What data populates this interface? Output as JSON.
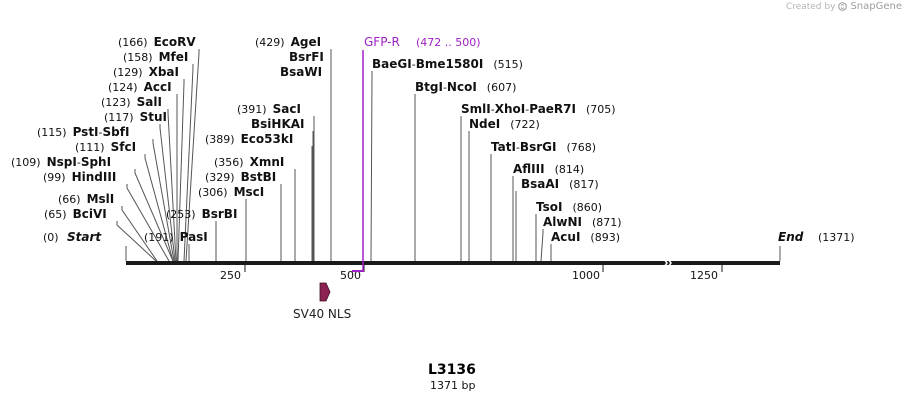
{
  "credit": {
    "prefix": "Created by",
    "brand": "SnapGene"
  },
  "map": {
    "name": "L3136",
    "length_label": "1371 bp",
    "length": 1371,
    "ticks": [
      "250",
      "500",
      "1000",
      "1250"
    ],
    "start": {
      "label": "Start",
      "pos": "(0)"
    },
    "end": {
      "label": "End",
      "pos": "(1371)"
    }
  },
  "sites": [
    {
      "names": [
        "EcoRV"
      ],
      "pos": "(166)"
    },
    {
      "names": [
        "MfeI"
      ],
      "pos": "(158)"
    },
    {
      "names": [
        "XbaI"
      ],
      "pos": "(129)"
    },
    {
      "names": [
        "AccI"
      ],
      "pos": "(124)"
    },
    {
      "names": [
        "SalI"
      ],
      "pos": "(123)"
    },
    {
      "names": [
        "StuI"
      ],
      "pos": "(117)"
    },
    {
      "names": [
        "PstI",
        "SbfI"
      ],
      "pos": "(115)"
    },
    {
      "names": [
        "SfcI"
      ],
      "pos": "(111)"
    },
    {
      "names": [
        "NspI",
        "SphI"
      ],
      "pos": "(109)"
    },
    {
      "names": [
        "HindIII"
      ],
      "pos": "(99)"
    },
    {
      "names": [
        "MslI"
      ],
      "pos": "(66)"
    },
    {
      "names": [
        "BciVI"
      ],
      "pos": "(65)"
    },
    {
      "names": [
        "PasI"
      ],
      "pos": "(191)"
    },
    {
      "names": [
        "BsrBI"
      ],
      "pos": "(253)"
    },
    {
      "names": [
        "MscI"
      ],
      "pos": "(306)"
    },
    {
      "names": [
        "BstBI"
      ],
      "pos": "(329)"
    },
    {
      "names": [
        "XmnI"
      ],
      "pos": "(356)"
    },
    {
      "names": [
        "Eco53kI"
      ],
      "pos": "(389)"
    },
    {
      "names": [
        "BsiHKAI"
      ],
      "pos": ""
    },
    {
      "names": [
        "SacI"
      ],
      "pos": "(391)"
    },
    {
      "names": [
        "BsaWI"
      ],
      "pos": ""
    },
    {
      "names": [
        "BsrFI"
      ],
      "pos": ""
    },
    {
      "names": [
        "AgeI"
      ],
      "pos": "(429)"
    },
    {
      "names": [
        "BaeGI",
        "Bme1580I"
      ],
      "pos": "(515)"
    },
    {
      "names": [
        "BtgI",
        "NcoI"
      ],
      "pos": "(607)"
    },
    {
      "names": [
        "SmlI",
        "XhoI",
        "PaeR7I"
      ],
      "pos": "(705)"
    },
    {
      "names": [
        "NdeI"
      ],
      "pos": "(722)"
    },
    {
      "names": [
        "TatI",
        "BsrGI"
      ],
      "pos": "(768)"
    },
    {
      "names": [
        "AflIII"
      ],
      "pos": "(814)"
    },
    {
      "names": [
        "BsaAI"
      ],
      "pos": "(817)"
    },
    {
      "names": [
        "TsoI"
      ],
      "pos": "(860)"
    },
    {
      "names": [
        "AlwNI"
      ],
      "pos": "(871)"
    },
    {
      "names": [
        "AcuI"
      ],
      "pos": "(893)"
    }
  ],
  "primer": {
    "name": "GFP-R",
    "range": "(472 .. 500)",
    "color": "#a020c8"
  },
  "feature": {
    "name": "SV40 NLS",
    "color": "#8b2252"
  },
  "colors": {
    "backbone": "#1a1a1a",
    "cut_line": "#555555"
  }
}
